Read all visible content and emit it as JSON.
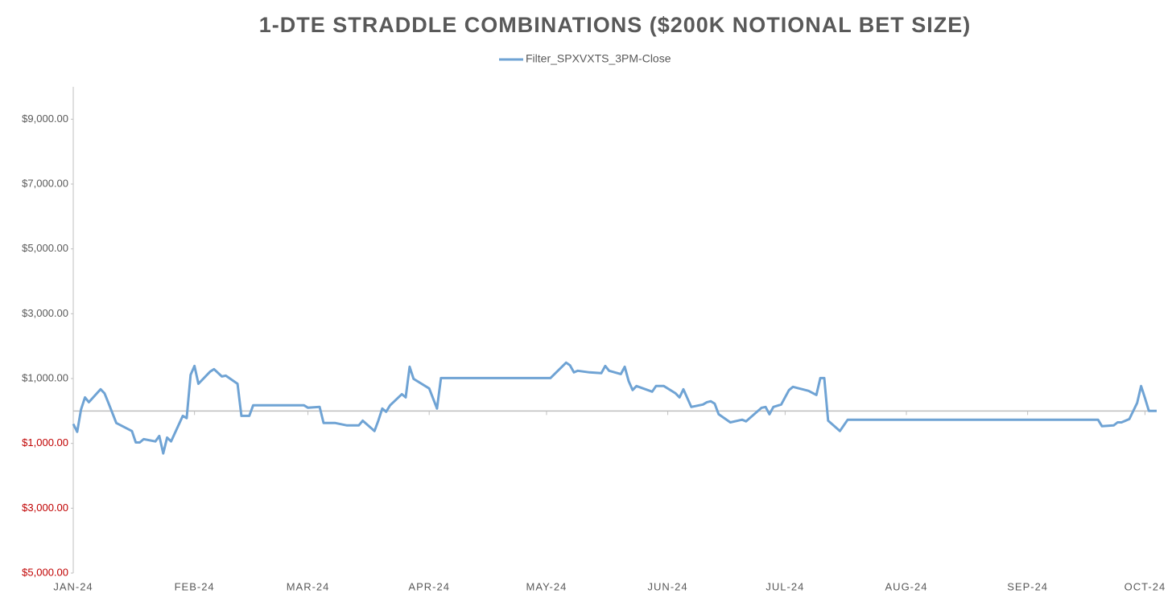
{
  "chart_data": {
    "type": "line",
    "title": "1-DTE STRADDLE COMBINATIONS ($200K NOTIONAL BET SIZE)",
    "series": [
      {
        "name": "Filter_SPXVXTS_3PM-Close",
        "color": "#6fa3d4",
        "x": [
          0,
          1,
          2,
          3,
          4,
          7,
          8,
          9,
          11,
          15,
          16,
          17,
          18,
          21,
          22,
          23,
          24,
          25,
          28,
          29,
          30,
          31,
          32,
          35,
          36,
          38,
          39,
          42,
          43,
          45,
          46,
          59,
          60,
          63,
          64,
          67,
          70,
          73,
          74,
          77,
          78,
          79,
          80,
          81,
          84,
          85,
          86,
          87,
          91,
          93,
          94,
          122,
          126,
          127,
          128,
          129,
          132,
          135,
          136,
          137,
          140,
          141,
          142,
          143,
          144,
          148,
          149,
          151,
          154,
          155,
          156,
          158,
          161,
          162,
          163,
          164,
          165,
          168,
          171,
          172,
          176,
          177,
          178,
          179,
          181,
          183,
          184,
          188,
          190,
          191,
          192,
          193,
          196,
          198,
          262,
          263,
          266,
          267,
          268,
          270,
          272,
          273,
          274,
          275,
          277
        ],
        "values": [
          -400,
          -645,
          50,
          420,
          270,
          670,
          545,
          250,
          -370,
          -620,
          -970,
          -970,
          -870,
          -940,
          -770,
          -1310,
          -820,
          -940,
          -150,
          -220,
          1115,
          1390,
          840,
          1215,
          1290,
          1065,
          1090,
          840,
          -150,
          -150,
          175,
          175,
          100,
          125,
          -370,
          -370,
          -445,
          -445,
          -300,
          -620,
          -300,
          75,
          -25,
          175,
          520,
          420,
          1365,
          990,
          695,
          75,
          1015,
          1015,
          1490,
          1410,
          1190,
          1240,
          1190,
          1165,
          1390,
          1240,
          1140,
          1365,
          920,
          645,
          770,
          595,
          770,
          770,
          545,
          420,
          670,
          125,
          200,
          270,
          300,
          225,
          -100,
          -350,
          -270,
          -320,
          100,
          125,
          -100,
          125,
          200,
          645,
          745,
          620,
          495,
          1015,
          1015,
          -300,
          -620,
          -270,
          -270,
          -470,
          -445,
          -350,
          -350,
          -250,
          250,
          770,
          400,
          0,
          0
        ]
      }
    ],
    "xlim": [
      0,
      277
    ],
    "xticks": [
      {
        "value": 0,
        "label": "JAN-24"
      },
      {
        "value": 31,
        "label": "FEB-24"
      },
      {
        "value": 60,
        "label": "MAR-24"
      },
      {
        "value": 91,
        "label": "APR-24"
      },
      {
        "value": 121,
        "label": "MAY-24"
      },
      {
        "value": 152,
        "label": "JUN-24"
      },
      {
        "value": 182,
        "label": "JUL-24"
      },
      {
        "value": 213,
        "label": "AUG-24"
      },
      {
        "value": 244,
        "label": "SEP-24"
      },
      {
        "value": 274,
        "label": "OCT-24"
      }
    ],
    "ylim": [
      -5000,
      10000
    ],
    "yticks": [
      {
        "value": 9000,
        "label": "$9,000.00"
      },
      {
        "value": 7000,
        "label": "$7,000.00"
      },
      {
        "value": 5000,
        "label": "$5,000.00"
      },
      {
        "value": 3000,
        "label": "$3,000.00"
      },
      {
        "value": 1000,
        "label": "$1,000.00"
      },
      {
        "value": -1000,
        "label": "$1,000.00"
      },
      {
        "value": -3000,
        "label": "$3,000.00"
      },
      {
        "value": -5000,
        "label": "$5,000.00"
      }
    ],
    "negative_tick_color": "#c00000",
    "legend": "top"
  }
}
